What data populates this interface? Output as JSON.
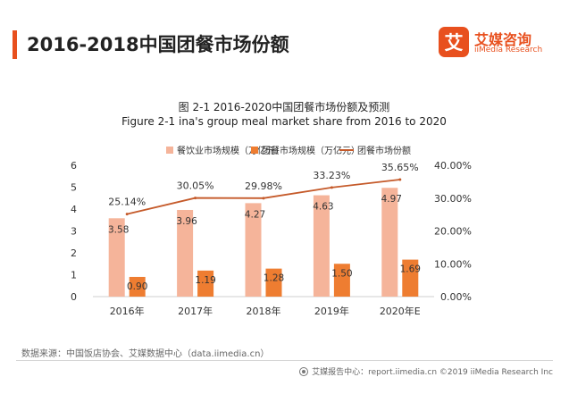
{
  "page": {
    "title": "2016-2018中国团餐市场份额",
    "source": "数据来源：中国饭店协会、艾媒数据中心（data.iimedia.cn）",
    "footer": "艾媒报告中心：report.iimedia.cn  ©2019  iiMedia Research  Inc"
  },
  "brand": {
    "name": "艾媒咨询",
    "sub": "iiMedia Research",
    "logo_glyph": "艾",
    "color": "#e8501e"
  },
  "colors": {
    "series_catering": "#f5b49a",
    "series_group_meal": "#ee7d31",
    "series_share": "#c55a2a"
  },
  "chart_data": {
    "type": "bar",
    "title": "图 2-1 2016-2020中国团餐市场份额及预测",
    "subtitle": "Figure 2-1 ina's group meal market share from 2016 to 2020",
    "categories": [
      "2016年",
      "2017年",
      "2018年",
      "2019年",
      "2020年E"
    ],
    "series": [
      {
        "name": "餐饮业市场规模（万亿元）",
        "kind": "bar",
        "axis": "left",
        "values": [
          3.58,
          3.96,
          4.27,
          4.63,
          4.97
        ],
        "labels": [
          "3.58",
          "3.96",
          "4.27",
          "4.63",
          "4.97"
        ]
      },
      {
        "name": "团餐市场规模（万亿元）",
        "kind": "bar",
        "axis": "left",
        "values": [
          0.9,
          1.19,
          1.28,
          1.5,
          1.69
        ],
        "labels": [
          "0.90",
          "1.19",
          "1.28",
          "1.50",
          "1.69"
        ]
      },
      {
        "name": "团餐市场份额",
        "kind": "line",
        "axis": "right",
        "values": [
          25.14,
          30.05,
          29.98,
          33.23,
          35.65
        ],
        "labels": [
          "25.14%",
          "30.05%",
          "29.98%",
          "33.23%",
          "35.65%"
        ]
      }
    ],
    "y_left": {
      "ylim": [
        0,
        6
      ],
      "ticks": [
        "0",
        "1",
        "2",
        "3",
        "4",
        "5",
        "6"
      ]
    },
    "y_right": {
      "ylim": [
        0,
        40
      ],
      "ticks": [
        "0.00%",
        "10.00%",
        "20.00%",
        "30.00%",
        "40.00%"
      ]
    },
    "grid": false,
    "legend": "top"
  }
}
